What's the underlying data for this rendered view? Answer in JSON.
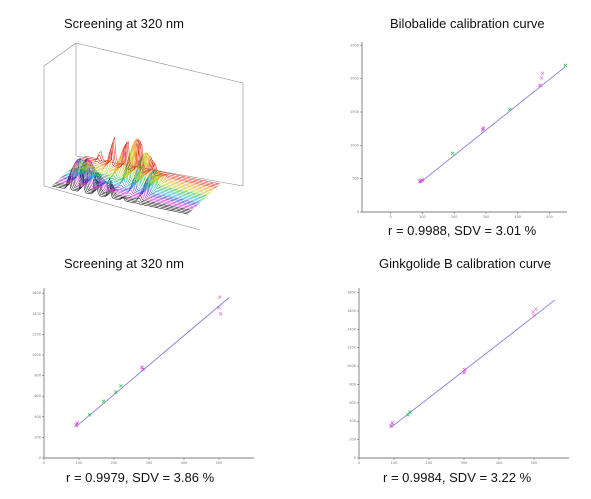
{
  "panels": [
    {
      "title": "Screening at 320 nm",
      "stat": ""
    },
    {
      "title": "Bilobalide calibration curve",
      "stat": "r = 0.9988, SDV = 3.01 %"
    },
    {
      "title": "Screening at 320 nm",
      "stat": "r = 0.9979, SDV = 3.86 %"
    },
    {
      "title": "Ginkgolide B calibration curve",
      "stat": "r = 0.9984, SDV = 3.22 %"
    }
  ],
  "colors": {
    "fit_line": "#7f7fe0",
    "point_magenta": "#e040e0",
    "point_green": "#30c050",
    "point_pink": "#e080e0",
    "axis": "#555555"
  },
  "chart_data": [
    {
      "type": "line",
      "subtype": "3d-waterfall",
      "title": "Screening at 320 nm",
      "n_traces": 26,
      "colors_order": [
        "black",
        "magenta",
        "blue",
        "cyan",
        "green",
        "yellow",
        "orange",
        "red"
      ],
      "peak_positions": [
        0.12,
        0.22,
        0.32,
        0.42,
        0.52,
        0.62
      ],
      "peak_heights": [
        0.55,
        0.75,
        0.6,
        0.85,
        0.7,
        0.45
      ]
    },
    {
      "type": "scatter",
      "title": "Bilobalide calibration curve",
      "xlabel": "",
      "ylabel": "",
      "x_ticks": [
        0,
        100,
        200,
        300,
        400,
        500
      ],
      "y_ticks": [
        0,
        500,
        1000,
        1500,
        2000,
        2500
      ],
      "xlim": [
        -90,
        555
      ],
      "ylim": [
        0,
        2550
      ],
      "fit": {
        "x": [
          90,
          550
        ],
        "y": [
          430,
          2180
        ]
      },
      "points": [
        {
          "x": 92,
          "y": 460,
          "c": "magenta"
        },
        {
          "x": 95,
          "y": 470,
          "c": "magenta"
        },
        {
          "x": 100,
          "y": 480,
          "c": "magenta"
        },
        {
          "x": 195,
          "y": 880,
          "c": "green"
        },
        {
          "x": 290,
          "y": 1230,
          "c": "magenta"
        },
        {
          "x": 292,
          "y": 1260,
          "c": "magenta"
        },
        {
          "x": 375,
          "y": 1540,
          "c": "green"
        },
        {
          "x": 470,
          "y": 1900,
          "c": "magenta"
        },
        {
          "x": 475,
          "y": 2010,
          "c": "pink"
        },
        {
          "x": 478,
          "y": 2080,
          "c": "pink"
        },
        {
          "x": 550,
          "y": 2200,
          "c": "green"
        }
      ]
    },
    {
      "type": "scatter",
      "title": "Screening at 320 nm",
      "xlabel": "",
      "ylabel": "",
      "x_ticks": [
        0,
        100,
        200,
        300,
        400,
        500
      ],
      "y_ticks": [
        0,
        200,
        400,
        600,
        800,
        1000,
        1200,
        1400,
        1600
      ],
      "xlim": [
        0,
        600
      ],
      "ylim": [
        0,
        1650
      ],
      "fit": {
        "x": [
          90,
          530
        ],
        "y": [
          300,
          1560
        ]
      },
      "points": [
        {
          "x": 92,
          "y": 320,
          "c": "magenta"
        },
        {
          "x": 95,
          "y": 340,
          "c": "magenta"
        },
        {
          "x": 130,
          "y": 420,
          "c": "green"
        },
        {
          "x": 170,
          "y": 550,
          "c": "green"
        },
        {
          "x": 205,
          "y": 640,
          "c": "green"
        },
        {
          "x": 220,
          "y": 700,
          "c": "green"
        },
        {
          "x": 280,
          "y": 880,
          "c": "magenta"
        },
        {
          "x": 283,
          "y": 860,
          "c": "magenta"
        },
        {
          "x": 500,
          "y": 1460,
          "c": "pink"
        },
        {
          "x": 502,
          "y": 1560,
          "c": "pink"
        },
        {
          "x": 505,
          "y": 1400,
          "c": "pink"
        }
      ]
    },
    {
      "type": "scatter",
      "title": "Ginkgolide B calibration curve",
      "xlabel": "",
      "ylabel": "",
      "x_ticks": [
        0,
        100,
        200,
        300,
        400,
        500
      ],
      "y_ticks": [
        0,
        200,
        400,
        600,
        800,
        1000,
        1200,
        1400,
        1600,
        1800
      ],
      "xlim": [
        0,
        600
      ],
      "ylim": [
        0,
        1850
      ],
      "fit": {
        "x": [
          90,
          560
        ],
        "y": [
          330,
          1720
        ]
      },
      "points": [
        {
          "x": 92,
          "y": 350,
          "c": "magenta"
        },
        {
          "x": 95,
          "y": 380,
          "c": "magenta"
        },
        {
          "x": 140,
          "y": 470,
          "c": "green"
        },
        {
          "x": 145,
          "y": 500,
          "c": "green"
        },
        {
          "x": 300,
          "y": 930,
          "c": "magenta"
        },
        {
          "x": 302,
          "y": 960,
          "c": "magenta"
        },
        {
          "x": 500,
          "y": 1550,
          "c": "pink"
        },
        {
          "x": 505,
          "y": 1620,
          "c": "pink"
        },
        {
          "x": 498,
          "y": 1590,
          "c": "pink"
        }
      ]
    }
  ]
}
